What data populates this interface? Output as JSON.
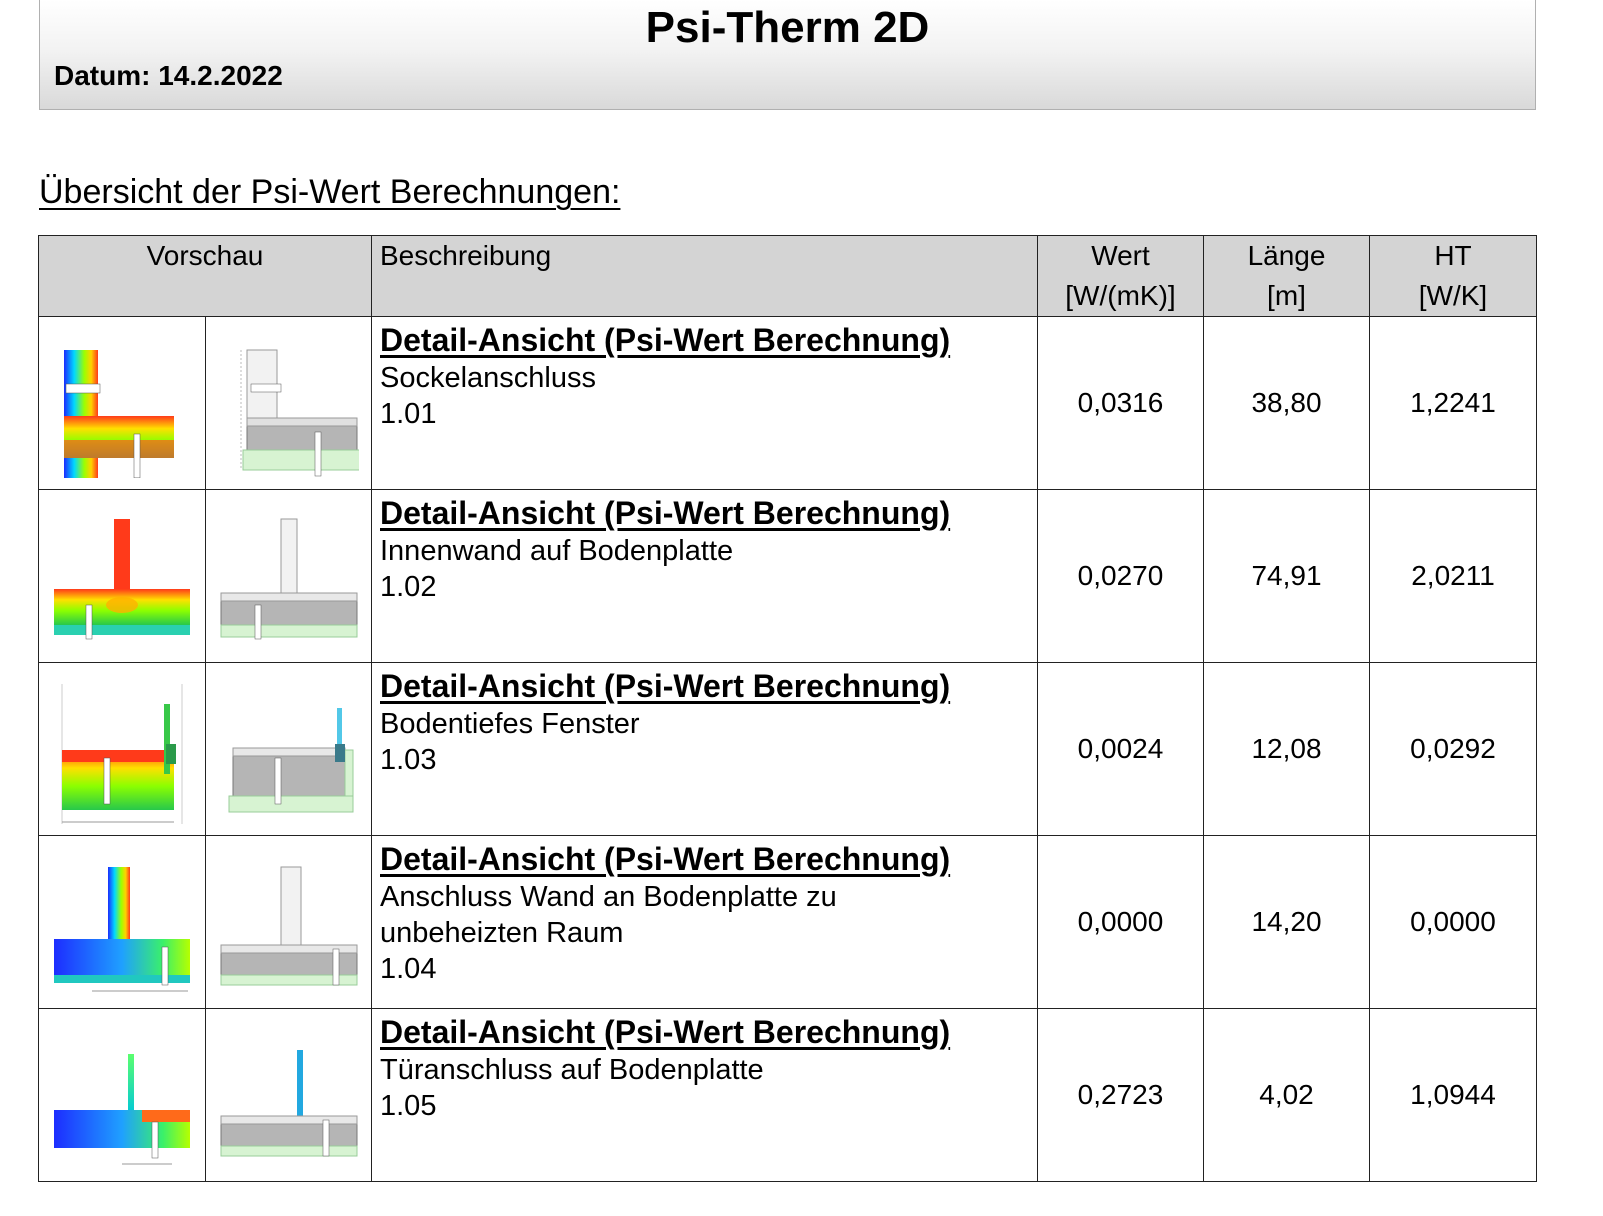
{
  "header": {
    "title": "Psi-Therm 2D",
    "date": "Datum: 14.2.2022"
  },
  "overview_title": "Übersicht der Psi-Wert Berechnungen:",
  "table": {
    "columns": {
      "preview": "Vorschau",
      "description": "Beschreibung",
      "value_line1": "Wert",
      "value_line2": "[W/(mK)]",
      "length_line1": "Länge",
      "length_line2": "[m]",
      "ht_line1": "HT",
      "ht_line2": "[W/K]"
    },
    "rows": [
      {
        "link": "Detail-Ansicht (Psi-Wert Berechnung)",
        "name": "Sockelanschluss",
        "name2": "",
        "code": "1.01",
        "value": "0,0316",
        "length": "38,80",
        "ht": "1,2241"
      },
      {
        "link": "Detail-Ansicht (Psi-Wert Berechnung)",
        "name": "Innenwand auf Bodenplatte",
        "name2": "",
        "code": "1.02",
        "value": "0,0270",
        "length": "74,91",
        "ht": "2,0211"
      },
      {
        "link": "Detail-Ansicht (Psi-Wert Berechnung)",
        "name": "Bodentiefes Fenster",
        "name2": "",
        "code": "1.03",
        "value": "0,0024",
        "length": "12,08",
        "ht": "0,0292"
      },
      {
        "link": "Detail-Ansicht (Psi-Wert Berechnung)",
        "name": "Anschluss Wand an Bodenplatte zu",
        "name2": "unbeheizten Raum",
        "code": "1.04",
        "value": "0,0000",
        "length": "14,20",
        "ht": "0,0000"
      },
      {
        "link": "Detail-Ansicht (Psi-Wert Berechnung)",
        "name": "Türanschluss auf Bodenplatte",
        "name2": "",
        "code": "1.05",
        "value": "0,2723",
        "length": "4,02",
        "ht": "1,0944"
      }
    ]
  }
}
